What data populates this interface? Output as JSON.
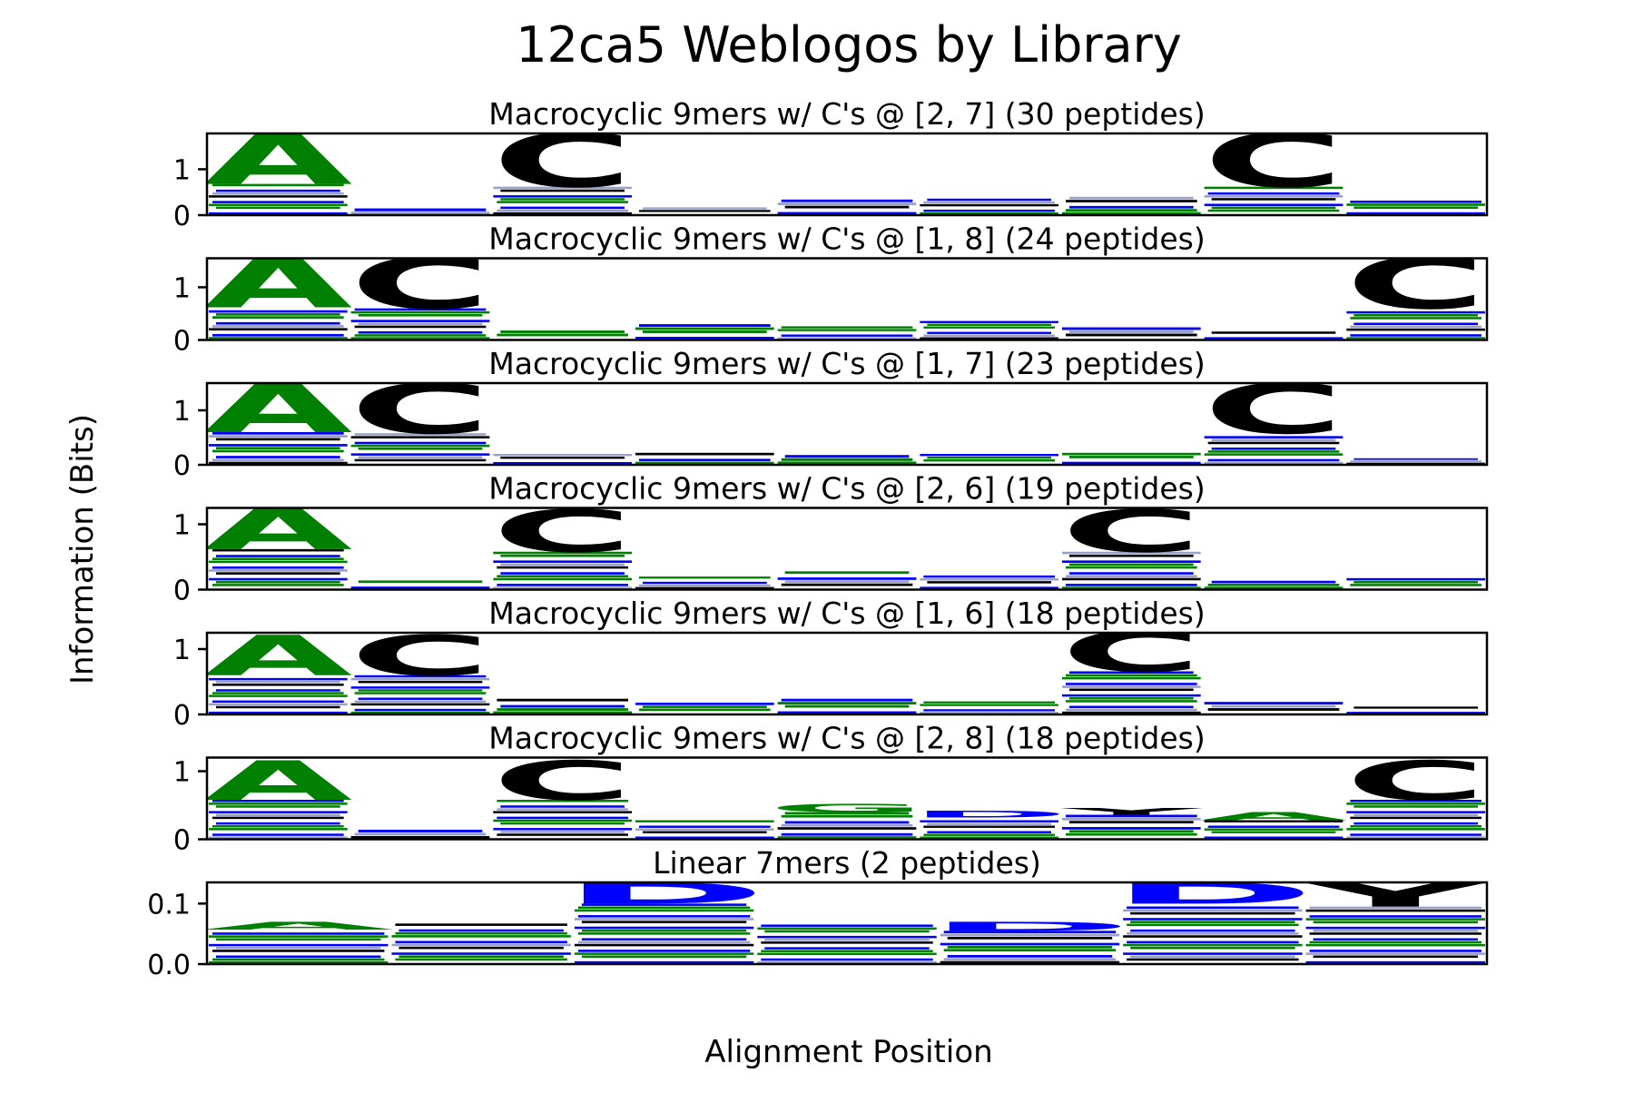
{
  "chart_data": {
    "type": "bar",
    "title": "12ca5 Weblogos by Library",
    "xlabel": "Alignment Position",
    "ylabel": "Information (Bits)",
    "colors": {
      "green": "#008000",
      "blue": "#0000ff",
      "black": "#000000"
    },
    "panels": [
      {
        "title": "Macrocyclic 9mers w/ C's @ [2, 7] (30 peptides)",
        "yticks": [
          "0",
          "1"
        ],
        "ylim": [
          0,
          1.78
        ],
        "columns": [
          {
            "top": "A",
            "top_color": "#008000",
            "top_height": 1.12,
            "base": 0.68
          },
          {
            "top": "",
            "top_color": "",
            "top_height": 0,
            "base": 0.22
          },
          {
            "top": "C",
            "top_color": "#000000",
            "top_height": 1.18,
            "base": 0.62
          },
          {
            "top": "",
            "top_color": "",
            "top_height": 0,
            "base": 0.17
          },
          {
            "top": "",
            "top_color": "",
            "top_height": 0,
            "base": 0.34
          },
          {
            "top": "",
            "top_color": "",
            "top_height": 0,
            "base": 0.36
          },
          {
            "top": "",
            "top_color": "",
            "top_height": 0,
            "base": 0.4
          },
          {
            "top": "C",
            "top_color": "#000000",
            "top_height": 1.18,
            "base": 0.62
          },
          {
            "top": "",
            "top_color": "",
            "top_height": 0,
            "base": 0.38
          }
        ]
      },
      {
        "title": "Macrocyclic 9mers w/ C's @ [1, 8] (24 peptides)",
        "yticks": [
          "0",
          "1"
        ],
        "ylim": [
          0,
          1.55
        ],
        "columns": [
          {
            "top": "A",
            "top_color": "#008000",
            "top_height": 0.98,
            "base": 0.62
          },
          {
            "top": "C",
            "top_color": "#000000",
            "top_height": 0.98,
            "base": 0.6
          },
          {
            "top": "",
            "top_color": "",
            "top_height": 0,
            "base": 0.18
          },
          {
            "top": "",
            "top_color": "",
            "top_height": 0,
            "base": 0.3
          },
          {
            "top": "",
            "top_color": "",
            "top_height": 0,
            "base": 0.26
          },
          {
            "top": "",
            "top_color": "",
            "top_height": 0,
            "base": 0.36
          },
          {
            "top": "",
            "top_color": "",
            "top_height": 0,
            "base": 0.3
          },
          {
            "top": "",
            "top_color": "",
            "top_height": 0,
            "base": 0.16
          },
          {
            "top": "C",
            "top_color": "#000000",
            "top_height": 0.98,
            "base": 0.6
          }
        ]
      },
      {
        "title": "Macrocyclic 9mers w/ C's @ [1, 7] (23 peptides)",
        "yticks": [
          "0",
          "1"
        ],
        "ylim": [
          0,
          1.5
        ],
        "columns": [
          {
            "top": "A",
            "top_color": "#008000",
            "top_height": 0.92,
            "base": 0.6
          },
          {
            "top": "C",
            "top_color": "#000000",
            "top_height": 0.92,
            "base": 0.58
          },
          {
            "top": "",
            "top_color": "",
            "top_height": 0,
            "base": 0.2
          },
          {
            "top": "",
            "top_color": "",
            "top_height": 0,
            "base": 0.22
          },
          {
            "top": "",
            "top_color": "",
            "top_height": 0,
            "base": 0.18
          },
          {
            "top": "",
            "top_color": "",
            "top_height": 0,
            "base": 0.2
          },
          {
            "top": "",
            "top_color": "",
            "top_height": 0,
            "base": 0.22
          },
          {
            "top": "C",
            "top_color": "#000000",
            "top_height": 0.92,
            "base": 0.58
          },
          {
            "top": "",
            "top_color": "",
            "top_height": 0,
            "base": 0.12
          }
        ]
      },
      {
        "title": "Macrocyclic 9mers w/ C's @ [2, 6] (19 peptides)",
        "yticks": [
          "0",
          "1"
        ],
        "ylim": [
          0,
          1.25
        ],
        "columns": [
          {
            "top": "A",
            "top_color": "#008000",
            "top_height": 0.65,
            "base": 0.62
          },
          {
            "top": "",
            "top_color": "",
            "top_height": 0,
            "base": 0.14
          },
          {
            "top": "C",
            "top_color": "#000000",
            "top_height": 0.65,
            "base": 0.58
          },
          {
            "top": "",
            "top_color": "",
            "top_height": 0,
            "base": 0.2
          },
          {
            "top": "",
            "top_color": "",
            "top_height": 0,
            "base": 0.28
          },
          {
            "top": "",
            "top_color": "",
            "top_height": 0,
            "base": 0.26
          },
          {
            "top": "C",
            "top_color": "#000000",
            "top_height": 0.65,
            "base": 0.58
          },
          {
            "top": "",
            "top_color": "",
            "top_height": 0,
            "base": 0.18
          },
          {
            "top": "",
            "top_color": "",
            "top_height": 0,
            "base": 0.22
          }
        ]
      },
      {
        "title": "Macrocyclic 9mers w/ C's @ [1, 6] (18 peptides)",
        "yticks": [
          "0",
          "1"
        ],
        "ylim": [
          0,
          1.25
        ],
        "columns": [
          {
            "top": "A",
            "top_color": "#008000",
            "top_height": 0.62,
            "base": 0.6
          },
          {
            "top": "C",
            "top_color": "#000000",
            "top_height": 0.62,
            "base": 0.6
          },
          {
            "top": "",
            "top_color": "",
            "top_height": 0,
            "base": 0.24
          },
          {
            "top": "",
            "top_color": "",
            "top_height": 0,
            "base": 0.18
          },
          {
            "top": "",
            "top_color": "",
            "top_height": 0,
            "base": 0.24
          },
          {
            "top": "",
            "top_color": "",
            "top_height": 0,
            "base": 0.2
          },
          {
            "top": "C",
            "top_color": "#000000",
            "top_height": 0.62,
            "base": 0.66
          },
          {
            "top": "",
            "top_color": "",
            "top_height": 0,
            "base": 0.24
          },
          {
            "top": "",
            "top_color": "",
            "top_height": 0,
            "base": 0.12
          }
        ]
      },
      {
        "title": "Macrocyclic 9mers w/ C's @ [2, 8] (18 peptides)",
        "yticks": [
          "0",
          "1"
        ],
        "ylim": [
          0,
          1.2
        ],
        "columns": [
          {
            "top": "A",
            "top_color": "#008000",
            "top_height": 0.58,
            "base": 0.58
          },
          {
            "top": "",
            "top_color": "",
            "top_height": 0,
            "base": 0.14
          },
          {
            "top": "C",
            "top_color": "#000000",
            "top_height": 0.58,
            "base": 0.58
          },
          {
            "top": "",
            "top_color": "",
            "top_height": 0,
            "base": 0.28
          },
          {
            "top": "G",
            "top_color": "#008000",
            "top_height": 0.12,
            "base": 0.4
          },
          {
            "top": "D",
            "top_color": "#0000ff",
            "top_height": 0.1,
            "base": 0.32
          },
          {
            "top": "Y",
            "top_color": "#000000",
            "top_height": 0.1,
            "base": 0.36
          },
          {
            "top": "A",
            "top_color": "#008000",
            "top_height": 0.12,
            "base": 0.28
          },
          {
            "top": "C",
            "top_color": "#000000",
            "top_height": 0.58,
            "base": 0.58
          }
        ]
      },
      {
        "title": "Linear 7mers (2 peptides)",
        "yticks": [
          "0.0",
          "0.1"
        ],
        "ylim": [
          0,
          0.135
        ],
        "columns": [
          {
            "top": "A",
            "top_color": "#008000",
            "top_height": 0.013,
            "base": 0.057
          },
          {
            "top": "",
            "top_color": "",
            "top_height": 0,
            "base": 0.067
          },
          {
            "top": "D",
            "top_color": "#0000ff",
            "top_height": 0.035,
            "base": 0.1
          },
          {
            "top": "",
            "top_color": "",
            "top_height": 0,
            "base": 0.07
          },
          {
            "top": "D",
            "top_color": "#0000ff",
            "top_height": 0.015,
            "base": 0.055
          },
          {
            "top": "D",
            "top_color": "#0000ff",
            "top_height": 0.035,
            "base": 0.1
          },
          {
            "top": "Y",
            "top_color": "#000000",
            "top_height": 0.04,
            "base": 0.095
          }
        ]
      }
    ]
  }
}
